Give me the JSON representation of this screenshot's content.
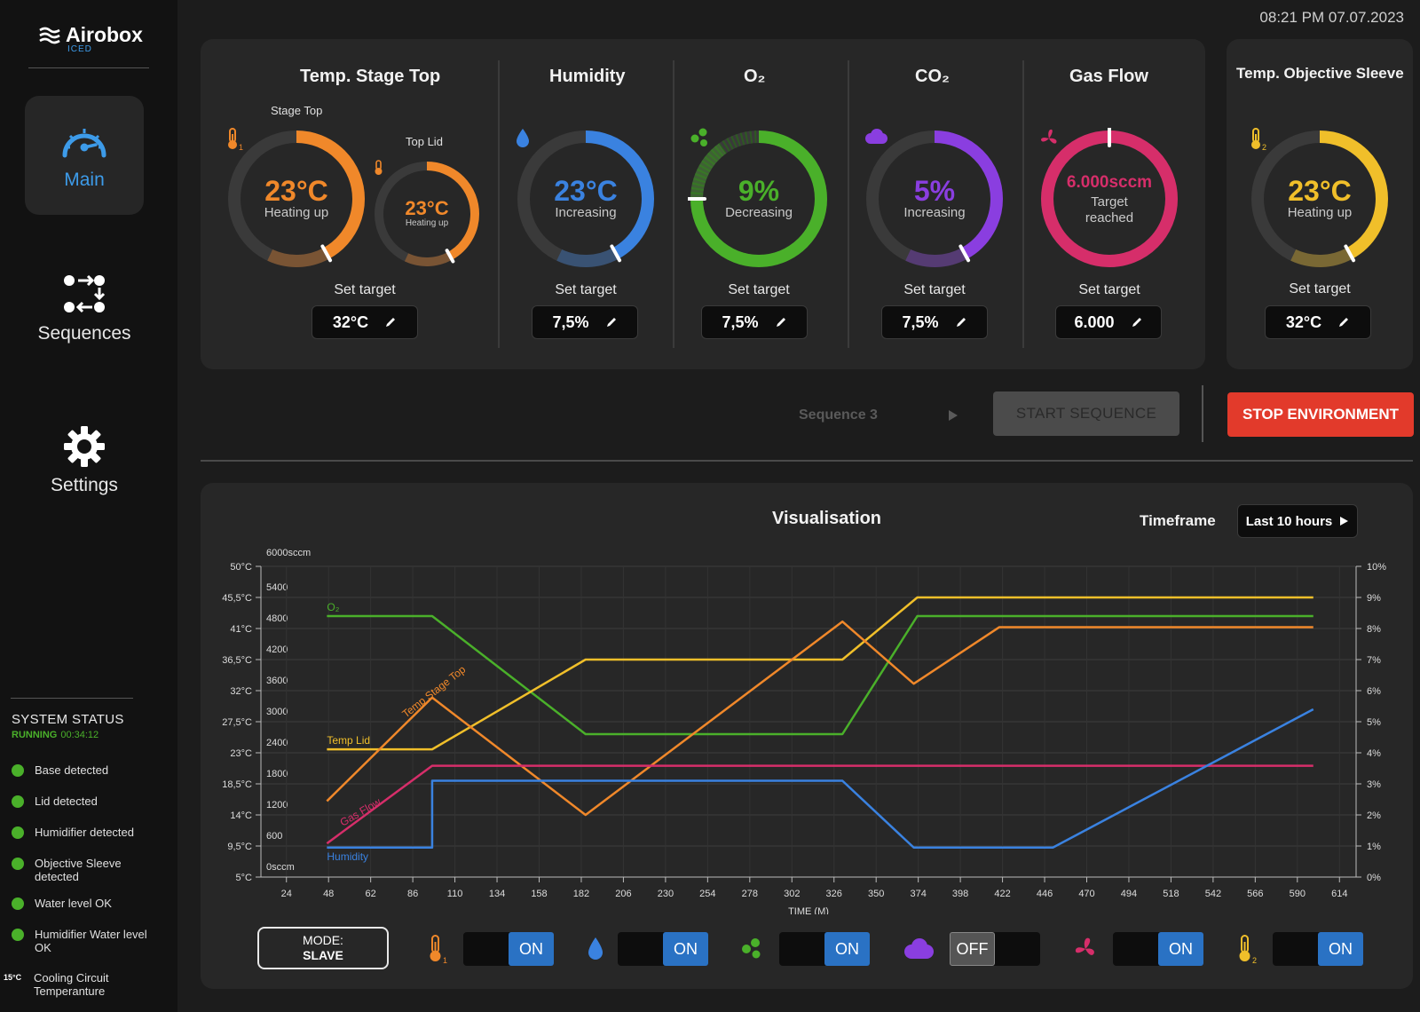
{
  "app": {
    "name": "Airobox",
    "subtitle": "ICED",
    "datetime": "08:21 PM 07.07.2023"
  },
  "nav": [
    {
      "label": "Main",
      "icon": "speedometer-icon",
      "active": true
    },
    {
      "label": "Sequences",
      "icon": "sequences-icon",
      "active": false
    },
    {
      "label": "Settings",
      "icon": "gear-icon",
      "active": false
    }
  ],
  "system_status": {
    "title": "SYSTEM STATUS",
    "state": "RUNNING",
    "uptime": "00:34:12",
    "items": [
      {
        "label": "Base detected",
        "status_color": "#4ab02a"
      },
      {
        "label": "Lid detected",
        "status_color": "#4ab02a"
      },
      {
        "label": "Humidifier detected",
        "status_color": "#4ab02a"
      },
      {
        "label": "Objective Sleeve detected",
        "status_color": "#4ab02a"
      },
      {
        "label": "Water level OK",
        "status_color": "#4ab02a"
      },
      {
        "label": "Humidifier Water level OK",
        "status_color": "#4ab02a"
      }
    ],
    "cooling": {
      "value": "15°C",
      "label": "Cooling Circuit Temperanture"
    }
  },
  "set_target_label": "Set target",
  "panels": {
    "temp_stage_top": {
      "title": "Temp. Stage Top",
      "stage_top": {
        "label": "Stage Top",
        "value": "23°C",
        "status": "Heating up",
        "fill_fraction": 0.42,
        "color": "#f0882a",
        "icon": "thermometer-1-icon"
      },
      "top_lid": {
        "label": "Top Lid",
        "value": "23°C",
        "status": "Heating up",
        "fill_fraction": 0.42,
        "color": "#f0882a",
        "icon": "thermometer-icon"
      },
      "target": "32°C"
    },
    "humidity": {
      "title": "Humidity",
      "value": "23°C",
      "status": "Increasing",
      "fill_fraction": 0.42,
      "color": "#3a82e0",
      "icon": "water-drop-icon",
      "target": "7,5%"
    },
    "o2": {
      "title": "O₂",
      "value": "9%",
      "status": "Decreasing",
      "fill_fraction": 0.75,
      "color": "#4ab02a",
      "icon": "o2-molecule-icon",
      "target": "7,5%"
    },
    "co2": {
      "title": "CO₂",
      "value": "5%",
      "status": "Increasing",
      "fill_fraction": 0.42,
      "color": "#8a3ee0",
      "icon": "cloud-icon",
      "target": "7,5%"
    },
    "gas_flow": {
      "title": "Gas Flow",
      "value": "6.000sccm",
      "status": "Target reached",
      "fill_fraction": 1.0,
      "color": "#d62e6a",
      "icon": "fan-icon",
      "target": "6.000"
    },
    "temp_objective_sleeve": {
      "title": "Temp. Objective Sleeve",
      "value": "23°C",
      "status": "Heating up",
      "fill_fraction": 0.42,
      "color": "#f0bf2a",
      "icon": "thermometer-2-icon",
      "target": "32°C"
    }
  },
  "controls": {
    "sequence_select": "Sequence 3",
    "start_sequence": "START SEQUENCE",
    "stop_environment": "STOP ENVIRONMENT"
  },
  "visualisation": {
    "title": "Visualisation",
    "timeframe_label": "Timeframe",
    "timeframe_value": "Last 10 hours"
  },
  "chart_data": {
    "type": "line",
    "xlabel": "TIME (M)",
    "x_ticks": [
      24,
      48,
      62,
      86,
      110,
      134,
      158,
      182,
      206,
      230,
      254,
      278,
      302,
      326,
      350,
      374,
      398,
      422,
      446,
      470,
      494,
      518,
      542,
      566,
      590,
      614
    ],
    "y_left_ticks": [
      "5°C",
      "9,5°C",
      "14°C",
      "18,5°C",
      "23°C",
      "27,5°C",
      "32°C",
      "36,5°C",
      "41°C",
      "45,5°C",
      "50°C"
    ],
    "y_left_values": [
      5,
      9.5,
      14,
      18.5,
      23,
      27.5,
      32,
      36.5,
      41,
      45.5,
      50
    ],
    "y_gas_ticks": [
      "0sccm",
      "600",
      "1200",
      "1800",
      "2400",
      "3000",
      "3600",
      "4200",
      "4800",
      "5400",
      "6000sccm"
    ],
    "y_right_ticks": [
      "0%",
      "1%",
      "2%",
      "3%",
      "4%",
      "5%",
      "6%",
      "7%",
      "8%",
      "9%",
      "10%"
    ],
    "ylim_temp": [
      5,
      50
    ],
    "ylim_gas": [
      0,
      6000
    ],
    "ylim_percent": [
      0,
      10
    ],
    "grid": true,
    "series": [
      {
        "name": "O₂",
        "unit": "percent",
        "color": "#4ab02a",
        "points": [
          [
            37,
            8.4
          ],
          [
            96,
            8.4
          ],
          [
            182,
            4.6
          ],
          [
            326,
            4.6
          ],
          [
            368,
            8.4
          ],
          [
            590,
            8.4
          ]
        ]
      },
      {
        "name": "Temp Lid",
        "unit": "temp",
        "color": "#f0bf2a",
        "points": [
          [
            37,
            23.5
          ],
          [
            96,
            23.5
          ],
          [
            182,
            36.5
          ],
          [
            326,
            36.5
          ],
          [
            368,
            45.5
          ],
          [
            590,
            45.5
          ]
        ]
      },
      {
        "name": "Temp Stage Top",
        "unit": "temp",
        "color": "#f0882a",
        "points": [
          [
            37,
            16
          ],
          [
            96,
            31
          ],
          [
            182,
            14
          ],
          [
            326,
            42
          ],
          [
            366,
            33
          ],
          [
            414,
            41.2
          ],
          [
            590,
            41.2
          ]
        ]
      },
      {
        "name": "Gas Flow",
        "unit": "gas",
        "color": "#d62e6a",
        "points": [
          [
            37,
            650
          ],
          [
            96,
            2150
          ],
          [
            590,
            2150
          ]
        ]
      },
      {
        "name": "Humidity",
        "unit": "percent",
        "color": "#3a82e0",
        "points": [
          [
            37,
            0.95
          ],
          [
            96,
            0.95
          ],
          [
            96,
            3.1
          ],
          [
            326,
            3.1
          ],
          [
            366,
            0.95
          ],
          [
            444,
            0.95
          ],
          [
            590,
            5.4
          ]
        ]
      }
    ]
  },
  "bottom": {
    "mode_label": "MODE:",
    "mode_value": "SLAVE",
    "toggles": [
      {
        "icon": "thermometer-1-icon",
        "state": "ON"
      },
      {
        "icon": "water-drop-icon",
        "state": "ON"
      },
      {
        "icon": "o2-molecule-icon",
        "state": "ON"
      },
      {
        "icon": "cloud-icon",
        "state": "OFF"
      },
      {
        "icon": "fan-icon",
        "state": "ON"
      },
      {
        "icon": "thermometer-2-icon",
        "state": "ON"
      }
    ]
  }
}
